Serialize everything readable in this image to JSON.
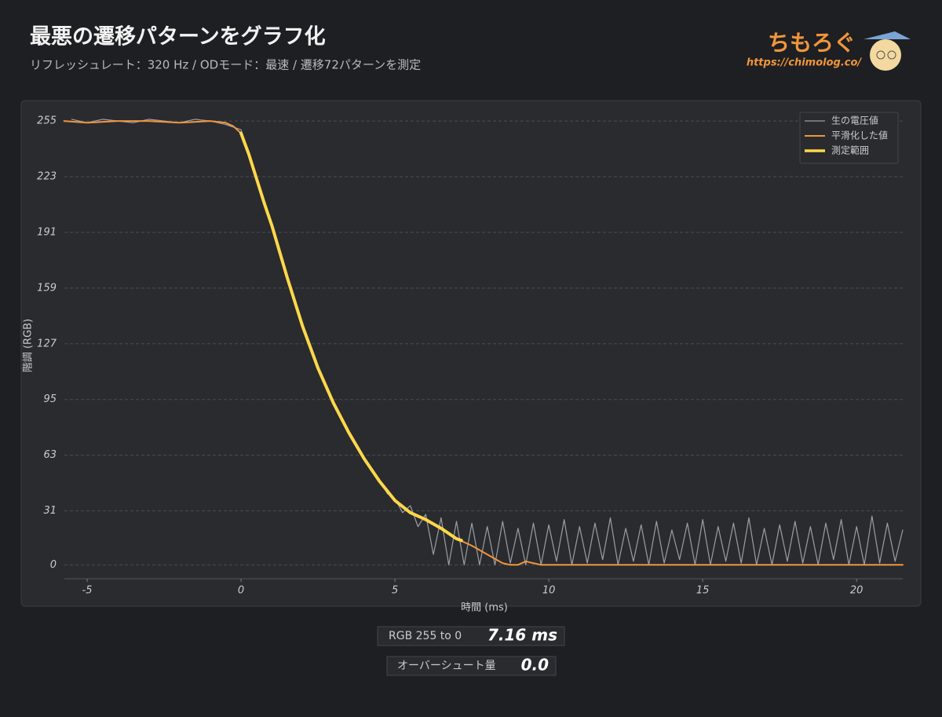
{
  "chart_data": {
    "type": "line",
    "title": "最悪の遷移パターンをグラフ化",
    "subtitle": "リフレッシュレート：320 Hz / ODモード：最速 / 遷移72パターンを測定",
    "xlabel": "時間 (ms)",
    "ylabel": "階調 (RGB)",
    "xlim": [
      -5.74,
      21.5
    ],
    "ylim": [
      -8,
      260
    ],
    "xticks": [
      -5,
      0,
      5,
      10,
      15,
      20
    ],
    "yticks": [
      0,
      31,
      63,
      95,
      127,
      159,
      191,
      223,
      255
    ],
    "grid": true,
    "legend": "upper right",
    "series": [
      {
        "name": "生の電圧値",
        "color": "#9a9ea6",
        "width": 1.2,
        "x": [
          -5.5,
          -5,
          -4.5,
          -4,
          -3.5,
          -3,
          -2.5,
          -2,
          -1.5,
          -1,
          -0.5,
          0,
          0.25,
          0.5,
          0.75,
          1,
          1.25,
          1.5,
          1.75,
          2,
          2.25,
          2.5,
          2.75,
          3,
          3.25,
          3.5,
          3.75,
          4,
          4.25,
          4.5,
          4.75,
          5,
          5.25,
          5.5,
          5.75,
          6,
          6.25,
          6.5,
          6.75,
          7,
          7.25,
          7.5,
          7.75,
          8,
          8.25,
          8.5,
          8.75,
          9,
          9.25,
          9.5,
          9.75,
          10,
          10.25,
          10.5,
          10.75,
          11,
          11.25,
          11.5,
          11.75,
          12,
          12.25,
          12.5,
          12.75,
          13,
          13.25,
          13.5,
          13.75,
          14,
          14.25,
          14.5,
          14.75,
          15,
          15.25,
          15.5,
          15.75,
          16,
          16.25,
          16.5,
          16.75,
          17,
          17.25,
          17.5,
          17.75,
          18,
          18.25,
          18.5,
          18.75,
          19,
          19.25,
          19.5,
          19.75,
          20,
          20.25,
          20.5,
          20.75,
          21,
          21.25,
          21.5
        ],
        "values": [
          256,
          254,
          256,
          255,
          254,
          256,
          255,
          254,
          256,
          255,
          253,
          250,
          237,
          223,
          209,
          196,
          180,
          166,
          150,
          138,
          125,
          114,
          103,
          94,
          84,
          77,
          68,
          62,
          54,
          49,
          41,
          38,
          30,
          34,
          22,
          29,
          6,
          27,
          0,
          25,
          0,
          24,
          0,
          22,
          0,
          25,
          1,
          21,
          0,
          24,
          0,
          23,
          2,
          26,
          0,
          22,
          1,
          24,
          3,
          27,
          0,
          21,
          2,
          23,
          0,
          25,
          1,
          20,
          3,
          24,
          0,
          26,
          0,
          22,
          2,
          24,
          1,
          27,
          0,
          21,
          0,
          23,
          2,
          25,
          1,
          22,
          0,
          24,
          3,
          26,
          0,
          22,
          0,
          28,
          1,
          24,
          2,
          20
        ]
      },
      {
        "name": "平滑化した値",
        "color": "#f0963c",
        "width": 2,
        "x": [
          -5.75,
          -5,
          -4,
          -3,
          -2,
          -1,
          -0.5,
          -0.25,
          0,
          0.25,
          0.5,
          0.75,
          1,
          1.5,
          2,
          2.5,
          3,
          3.5,
          4,
          4.5,
          5,
          5.5,
          6,
          6.5,
          7,
          7.5,
          8,
          8.5,
          8.75,
          9,
          9.25,
          9.5,
          9.75,
          10,
          15,
          21.5
        ],
        "values": [
          255,
          254,
          255,
          255,
          254,
          255,
          254,
          252,
          248,
          236,
          222,
          208,
          195,
          165,
          137,
          113,
          93,
          76,
          61,
          48,
          37,
          30,
          26,
          21,
          15,
          11,
          6,
          1,
          0,
          0,
          2,
          1,
          0,
          0,
          0,
          0
        ]
      },
      {
        "name": "測定範囲",
        "color": "#ffd84a",
        "width": 4,
        "x": [
          0,
          0.25,
          0.5,
          0.75,
          1,
          1.5,
          2,
          2.5,
          3,
          3.5,
          4,
          4.5,
          5,
          5.5,
          6,
          6.5,
          7,
          7.16
        ],
        "values": [
          248,
          236,
          222,
          208,
          195,
          165,
          137,
          113,
          93,
          76,
          61,
          48,
          37,
          30,
          26,
          21,
          15,
          14
        ]
      }
    ],
    "stats": [
      {
        "label": "RGB 255 to 0",
        "value": "7.16 ms"
      },
      {
        "label": "オーバーシュート量",
        "value": "0.0"
      }
    ]
  },
  "logo": {
    "name": "ちもろぐ",
    "url": "https://chimolog.co/"
  }
}
